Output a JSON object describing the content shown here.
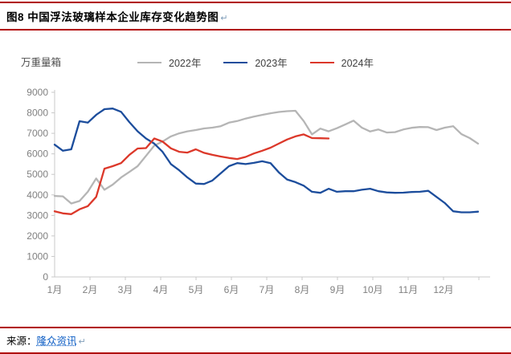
{
  "title": {
    "text": "图8  中国浮法玻璃样本企业库存变化趋势图",
    "return_mark": "↵"
  },
  "chart": {
    "unit_label": "万重量箱",
    "colors": {
      "series_2022": "#b5b5b5",
      "series_2023": "#1c4d9c",
      "series_2024": "#dc382a",
      "axis": "#c8c8c8",
      "tick_text": "#808080",
      "rule_red": "#b00000"
    }
  },
  "chart_data": {
    "type": "line",
    "title": "中国浮法玻璃样本企业库存变化趋势图",
    "ylabel": "万重量箱",
    "ylim": [
      0,
      9000
    ],
    "y_ticks": [
      0,
      1000,
      2000,
      3000,
      4000,
      5000,
      6000,
      7000,
      8000,
      9000
    ],
    "x_tick_labels": [
      "1月",
      "2月",
      "3月",
      "4月",
      "5月",
      "6月",
      "7月",
      "8月",
      "9月",
      "10月",
      "11月",
      "12月"
    ],
    "x_unit": "week-of-year",
    "grid": false,
    "legend_position": "top-center",
    "series": [
      {
        "name": "2022年",
        "color": "#b5b5b5",
        "values": [
          3950,
          3930,
          3580,
          3700,
          4150,
          4800,
          4250,
          4500,
          4850,
          5120,
          5400,
          5900,
          6400,
          6600,
          6850,
          7000,
          7100,
          7160,
          7240,
          7280,
          7350,
          7520,
          7600,
          7720,
          7820,
          7900,
          7980,
          8040,
          8080,
          8100,
          7600,
          6950,
          7230,
          7100,
          7250,
          7430,
          7620,
          7280,
          7090,
          7190,
          7040,
          7060,
          7190,
          7270,
          7310,
          7300,
          7160,
          7280,
          7350,
          6960,
          6770,
          6500
        ]
      },
      {
        "name": "2023年",
        "color": "#1c4d9c",
        "values": [
          6450,
          6150,
          6220,
          7590,
          7520,
          7900,
          8180,
          8210,
          8050,
          7550,
          7100,
          6750,
          6500,
          6100,
          5500,
          5200,
          4850,
          4550,
          4530,
          4700,
          5050,
          5400,
          5550,
          5500,
          5560,
          5640,
          5550,
          5100,
          4750,
          4620,
          4450,
          4150,
          4100,
          4300,
          4150,
          4180,
          4180,
          4250,
          4300,
          4180,
          4120,
          4100,
          4110,
          4140,
          4150,
          4200,
          3900,
          3600,
          3200,
          3150,
          3150,
          3180
        ]
      },
      {
        "name": "2024年",
        "color": "#dc382a",
        "values": [
          3200,
          3100,
          3060,
          3300,
          3450,
          3900,
          5280,
          5400,
          5550,
          5950,
          6260,
          6280,
          6750,
          6600,
          6270,
          6100,
          6060,
          6220,
          6050,
          5950,
          5870,
          5800,
          5750,
          5850,
          6020,
          6150,
          6300,
          6500,
          6700,
          6850,
          6950,
          6770,
          6760,
          6750
        ]
      }
    ]
  },
  "footer": {
    "prefix": "来源：",
    "link_text": "隆众资讯",
    "return_mark": "↵"
  }
}
